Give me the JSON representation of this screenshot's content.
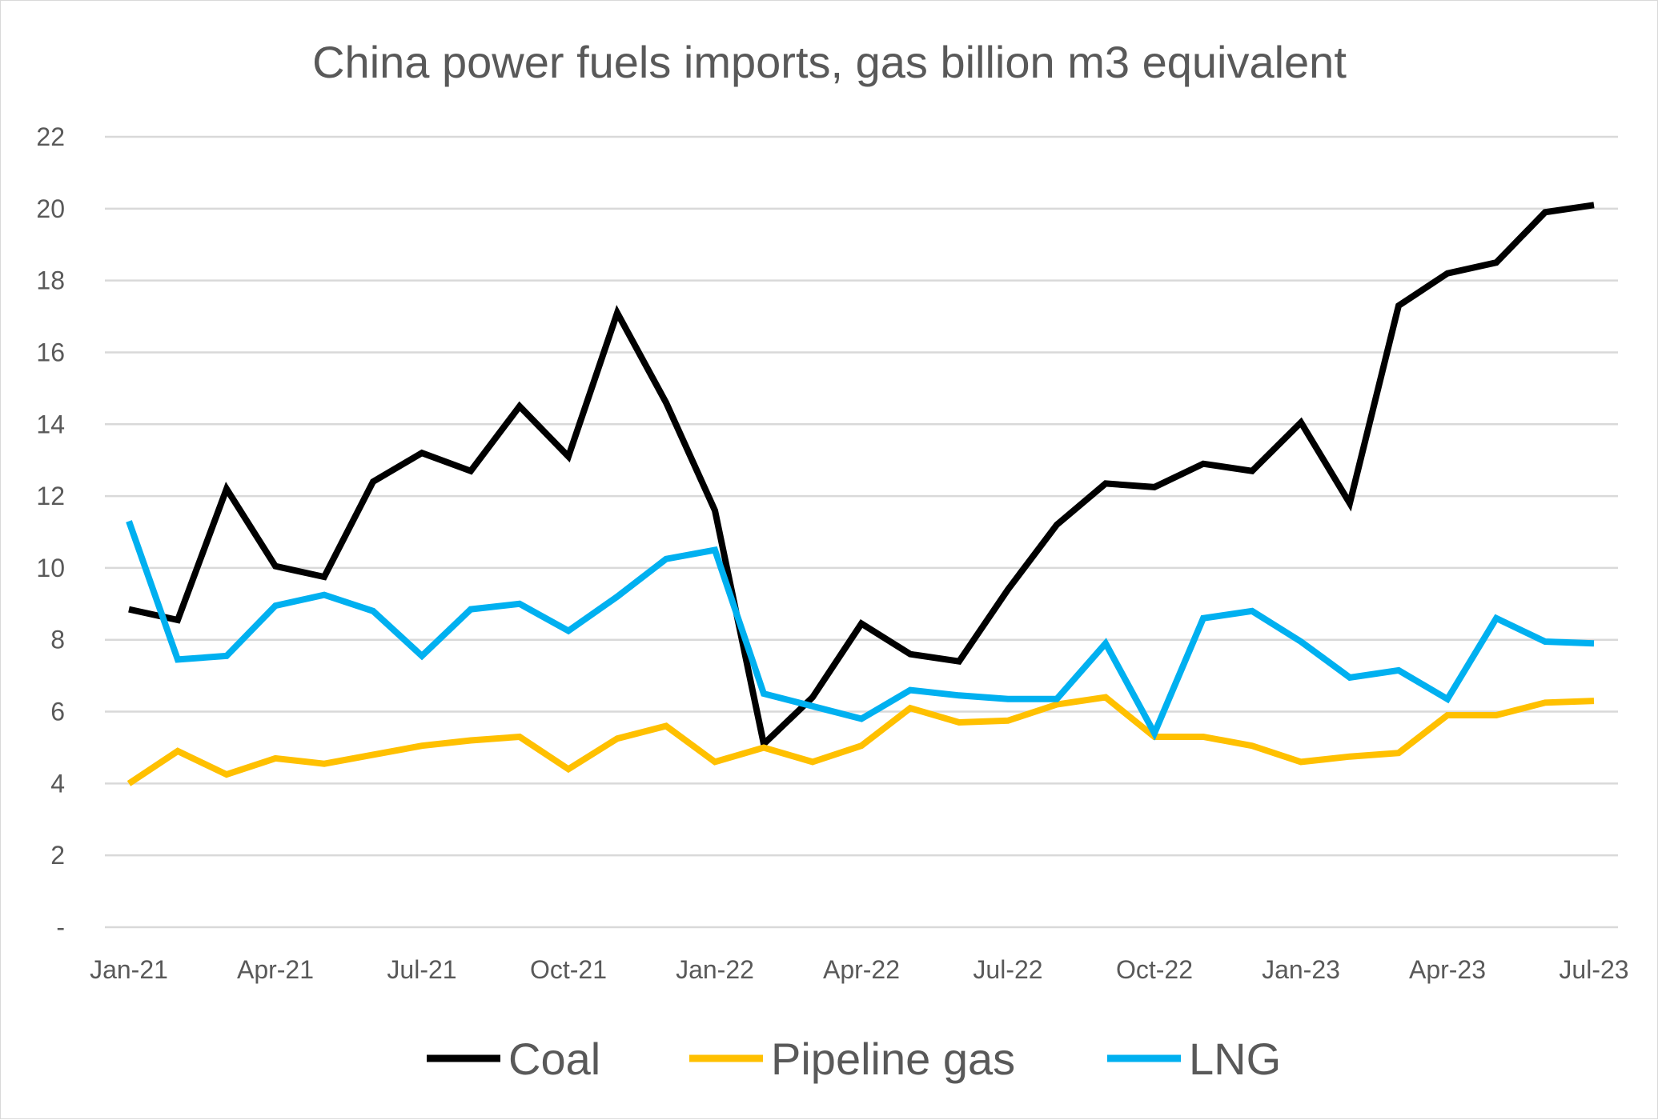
{
  "chart_data": {
    "type": "line",
    "title": "China power fuels imports, gas billion m3 equivalent",
    "xlabel": "",
    "ylabel": "",
    "ylim": [
      0,
      22
    ],
    "yticks": [
      0,
      2,
      4,
      6,
      8,
      10,
      12,
      14,
      16,
      18,
      20,
      22
    ],
    "ytick_labels": [
      "-",
      "2",
      "4",
      "6",
      "8",
      "10",
      "12",
      "14",
      "16",
      "18",
      "20",
      "22"
    ],
    "x": [
      "Jan-21",
      "Feb-21",
      "Mar-21",
      "Apr-21",
      "May-21",
      "Jun-21",
      "Jul-21",
      "Aug-21",
      "Sep-21",
      "Oct-21",
      "Nov-21",
      "Dec-21",
      "Jan-22",
      "Feb-22",
      "Mar-22",
      "Apr-22",
      "May-22",
      "Jun-22",
      "Jul-22",
      "Aug-22",
      "Sep-22",
      "Oct-22",
      "Nov-22",
      "Dec-22",
      "Jan-23",
      "Feb-23",
      "Mar-23",
      "Apr-23",
      "May-23",
      "Jun-23",
      "Jul-23"
    ],
    "xtick_labels": [
      {
        "index": 0,
        "label": "Jan-21"
      },
      {
        "index": 3,
        "label": "Apr-21"
      },
      {
        "index": 6,
        "label": "Jul-21"
      },
      {
        "index": 9,
        "label": "Oct-21"
      },
      {
        "index": 12,
        "label": "Jan-22"
      },
      {
        "index": 15,
        "label": "Apr-22"
      },
      {
        "index": 18,
        "label": "Jul-22"
      },
      {
        "index": 21,
        "label": "Oct-22"
      },
      {
        "index": 24,
        "label": "Jan-23"
      },
      {
        "index": 27,
        "label": "Apr-23"
      },
      {
        "index": 30,
        "label": "Jul-23"
      }
    ],
    "series": [
      {
        "name": "Coal",
        "color": "#000000",
        "values": [
          8.85,
          8.55,
          12.2,
          10.05,
          9.75,
          12.4,
          13.2,
          12.7,
          14.5,
          13.1,
          17.1,
          14.6,
          11.6,
          5.1,
          6.4,
          8.45,
          7.6,
          7.4,
          9.4,
          11.2,
          12.35,
          12.25,
          12.9,
          12.7,
          14.05,
          11.8,
          17.3,
          18.2,
          18.5,
          19.9,
          20.1
        ]
      },
      {
        "name": "Pipeline gas",
        "color": "#FFC000",
        "values": [
          4.0,
          4.9,
          4.25,
          4.7,
          4.55,
          4.8,
          5.05,
          5.2,
          5.3,
          4.4,
          5.25,
          5.6,
          4.6,
          5.0,
          4.6,
          5.05,
          6.1,
          5.7,
          5.75,
          6.2,
          6.4,
          5.3,
          5.3,
          5.05,
          4.6,
          4.75,
          4.85,
          5.9,
          5.9,
          6.25,
          6.3
        ]
      },
      {
        "name": "LNG",
        "color": "#00B0F0",
        "values": [
          11.3,
          7.45,
          7.55,
          8.95,
          9.25,
          8.8,
          7.55,
          8.85,
          9.0,
          8.25,
          9.2,
          10.25,
          10.5,
          6.5,
          6.15,
          5.8,
          6.6,
          6.45,
          6.35,
          6.35,
          7.9,
          5.4,
          8.6,
          8.8,
          7.95,
          6.95,
          7.15,
          6.35,
          8.6,
          7.95,
          7.9
        ]
      }
    ],
    "grid": true,
    "legend_position": "bottom"
  }
}
